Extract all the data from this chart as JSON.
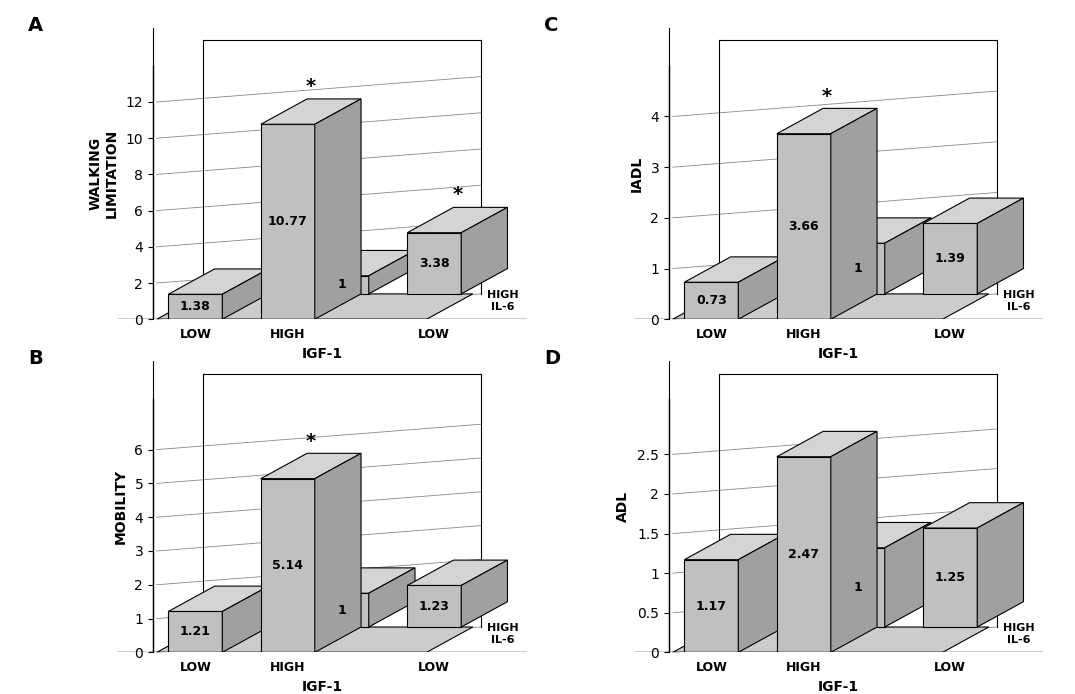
{
  "panels": [
    {
      "label": "A",
      "ylabel": "WALKING\nLIMITATION",
      "values": [
        1.38,
        10.77,
        1.0,
        3.38
      ],
      "ylim": [
        0,
        14
      ],
      "yticks": [
        0,
        2,
        4,
        6,
        8,
        10,
        12
      ],
      "star": [
        false,
        true,
        false,
        true
      ],
      "value_labels": [
        "1.38",
        "10.77",
        "1",
        "3.38"
      ]
    },
    {
      "label": "C",
      "ylabel": "IADL",
      "values": [
        0.73,
        3.66,
        1.0,
        1.39
      ],
      "ylim": [
        0,
        5.0
      ],
      "yticks": [
        0,
        1,
        2,
        3,
        4
      ],
      "star": [
        false,
        true,
        false,
        false
      ],
      "value_labels": [
        "0.73",
        "3.66",
        "1",
        "1.39"
      ]
    },
    {
      "label": "B",
      "ylabel": "MOBILITY",
      "values": [
        1.21,
        5.14,
        1.0,
        1.23
      ],
      "ylim": [
        0,
        7.5
      ],
      "yticks": [
        0,
        1,
        2,
        3,
        4,
        5,
        6
      ],
      "star": [
        false,
        true,
        false,
        false
      ],
      "value_labels": [
        "1.21",
        "5.14",
        "1",
        "1.23"
      ]
    },
    {
      "label": "D",
      "ylabel": "ADL",
      "values": [
        1.17,
        2.47,
        1.0,
        1.25
      ],
      "ylim": [
        0,
        3.2
      ],
      "yticks": [
        0,
        0.5,
        1.0,
        1.5,
        2.0,
        2.5
      ],
      "star": [
        false,
        false,
        false,
        false
      ],
      "value_labels": [
        "1.17",
        "2.47",
        "1",
        "1.25"
      ]
    }
  ],
  "bar_color_face": "#c0c0c0",
  "bar_color_top": "#d4d4d4",
  "bar_color_side": "#a0a0a0",
  "floor_color": "#cccccc",
  "xlabel": "IGF-1",
  "xtick_labels": [
    "LOW",
    "HIGH",
    "LOW"
  ],
  "depth_label": "HIGH\nIL-6",
  "background_color": "#ffffff",
  "grid_color": "#888888"
}
